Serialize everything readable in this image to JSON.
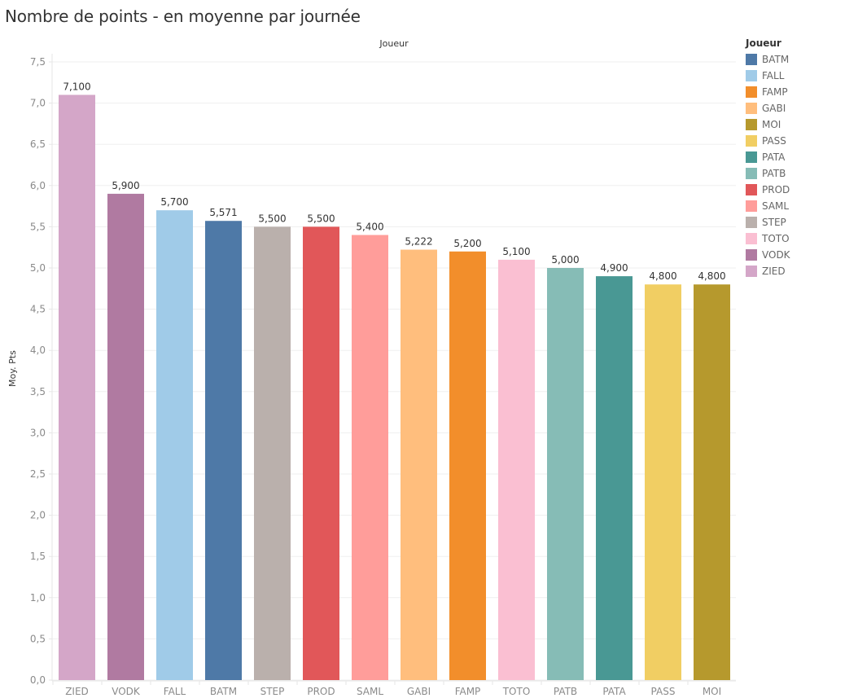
{
  "chart_data": {
    "type": "bar",
    "title": "Nombre de points - en moyenne par journée",
    "header": "Joueur",
    "xlabel": "",
    "ylabel": "Moy. Pts",
    "ylim": [
      0,
      7.5
    ],
    "yticks": [
      0,
      0.5,
      1,
      1.5,
      2,
      2.5,
      3,
      3.5,
      4,
      4.5,
      5,
      5.5,
      6,
      6.5,
      7,
      7.5
    ],
    "ytick_labels": [
      "0,0",
      "0,5",
      "1,0",
      "1,5",
      "2,0",
      "2,5",
      "3,0",
      "3,5",
      "4,0",
      "4,5",
      "5,0",
      "5,5",
      "6,0",
      "6,5",
      "7,0",
      "7,5"
    ],
    "grid": true,
    "categories": [
      "ZIED",
      "VODK",
      "FALL",
      "BATM",
      "STEP",
      "PROD",
      "SAML",
      "GABI",
      "FAMP",
      "TOTO",
      "PATB",
      "PATA",
      "PASS",
      "MOI"
    ],
    "values": [
      7.1,
      5.9,
      5.7,
      5.571,
      5.5,
      5.5,
      5.4,
      5.222,
      5.2,
      5.1,
      5.0,
      4.9,
      4.8,
      4.8
    ],
    "value_labels": [
      "7,100",
      "5,900",
      "5,700",
      "5,571",
      "5,500",
      "5,500",
      "5,400",
      "5,222",
      "5,200",
      "5,100",
      "5,000",
      "4,900",
      "4,800",
      "4,800"
    ],
    "legend_placement": "right",
    "legend": {
      "title": "Joueur",
      "items": [
        {
          "name": "BATM",
          "color": "#4e79a7"
        },
        {
          "name": "FALL",
          "color": "#a0cbe8"
        },
        {
          "name": "FAMP",
          "color": "#f28e2b"
        },
        {
          "name": "GABI",
          "color": "#ffbe7d"
        },
        {
          "name": "MOI",
          "color": "#b6992d"
        },
        {
          "name": "PASS",
          "color": "#f1ce63"
        },
        {
          "name": "PATA",
          "color": "#499894"
        },
        {
          "name": "PATB",
          "color": "#86bcb6"
        },
        {
          "name": "PROD",
          "color": "#e15759"
        },
        {
          "name": "SAML",
          "color": "#ff9d9a"
        },
        {
          "name": "STEP",
          "color": "#bab0ac"
        },
        {
          "name": "TOTO",
          "color": "#fabfd2"
        },
        {
          "name": "VODK",
          "color": "#b07aa1"
        },
        {
          "name": "ZIED",
          "color": "#d4a6c8"
        }
      ]
    }
  }
}
